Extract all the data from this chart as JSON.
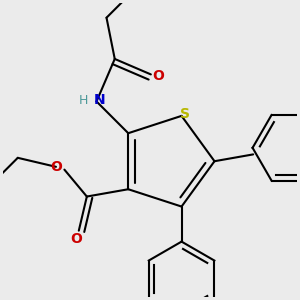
{
  "background_color": "#ebebeb",
  "bond_color": "#000000",
  "bond_width": 1.5,
  "atom_colors": {
    "S": "#b8b800",
    "N": "#0000cc",
    "O": "#cc0000",
    "H": "#4d9999",
    "C": "#000000"
  },
  "figsize": [
    3.0,
    3.0
  ],
  "dpi": 100
}
